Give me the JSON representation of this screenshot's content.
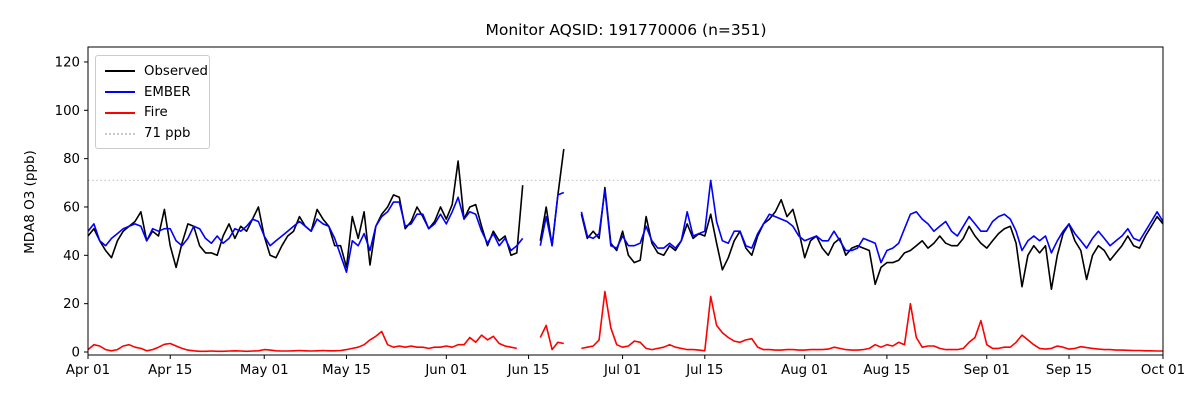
{
  "title": "Monitor AQSID: 191770006 (n=351)",
  "y_axis": {
    "label": "MDA8 O3 (ppb)",
    "ticks": [
      0,
      20,
      40,
      60,
      80,
      100,
      120
    ]
  },
  "x_axis": {
    "tick_labels": [
      "Apr 01",
      "Apr 15",
      "May 01",
      "May 15",
      "Jun 01",
      "Jun 15",
      "Jul 01",
      "Jul 15",
      "Aug 01",
      "Aug 15",
      "Sep 01",
      "Sep 15",
      "Oct 01"
    ],
    "tick_day_indices": [
      0,
      14,
      30,
      44,
      61,
      75,
      91,
      105,
      122,
      136,
      153,
      167,
      183
    ]
  },
  "legend": {
    "items": [
      {
        "label": "Observed",
        "color": "#000000",
        "style": "solid"
      },
      {
        "label": "EMBER",
        "color": "#0000ff",
        "style": "solid"
      },
      {
        "label": "Fire",
        "color": "#ff0000",
        "style": "solid"
      },
      {
        "label": "71 ppb",
        "color": "#c9c9c9",
        "style": "dotted"
      }
    ]
  },
  "threshold": {
    "value": 71,
    "label": "71 ppb",
    "color": "#c9c9c9"
  },
  "chart_data": {
    "type": "line",
    "title": "Monitor AQSID: 191770006 (n=351)",
    "xlabel": "",
    "ylabel": "MDA8 O3 (ppb)",
    "ylim": [
      -1,
      126
    ],
    "x_start_label": "Apr 01",
    "x_end_label": "Oct 01",
    "x_unit": "day index from Apr 01 (daily values, 184 days)",
    "grid": false,
    "legend_position": "upper left",
    "reference_line_ppb": 71,
    "series": [
      {
        "name": "Observed",
        "color": "#000000",
        "values": [
          48,
          51,
          46,
          42,
          39,
          46,
          50,
          52,
          54,
          58,
          46,
          50,
          48,
          59,
          44,
          35,
          45,
          53,
          52,
          44,
          41,
          41,
          40,
          48,
          53,
          47,
          52,
          50,
          55,
          60,
          48,
          40,
          39,
          44,
          48,
          50,
          56,
          52,
          50,
          59,
          55,
          52,
          44,
          44,
          35,
          56,
          47,
          58,
          36,
          52,
          57,
          60,
          65,
          64,
          51,
          54,
          60,
          56,
          51,
          54,
          60,
          55,
          61,
          79,
          55,
          60,
          61,
          52,
          44,
          50,
          46,
          48,
          40,
          41,
          69,
          null,
          null,
          46,
          60,
          44,
          65,
          84,
          null,
          null,
          57,
          47,
          50,
          47,
          68,
          45,
          42,
          50,
          40,
          37,
          38,
          56,
          45,
          41,
          40,
          44,
          42,
          46,
          53,
          47,
          49,
          48,
          57,
          45,
          34,
          39,
          46,
          50,
          43,
          40,
          48,
          53,
          55,
          58,
          63,
          56,
          59,
          50,
          39,
          46,
          48,
          43,
          40,
          45,
          47,
          40,
          43,
          44,
          43,
          42,
          28,
          35,
          37,
          37,
          38,
          41,
          42,
          44,
          46,
          43,
          45,
          48,
          45,
          44,
          44,
          47,
          52,
          48,
          45,
          43,
          46,
          49,
          51,
          52,
          45,
          27,
          40,
          44,
          41,
          44,
          26,
          40,
          49,
          53,
          46,
          42,
          30,
          40,
          44,
          42,
          38,
          41,
          44,
          48,
          44,
          43,
          48,
          52,
          56,
          53
        ]
      },
      {
        "name": "EMBER",
        "color": "#0000ff",
        "values": [
          50,
          53,
          46,
          44,
          47,
          49,
          51,
          52,
          53,
          52,
          46,
          51,
          50,
          51,
          51,
          46,
          44,
          47,
          52,
          51,
          47,
          45,
          48,
          45,
          47,
          51,
          50,
          52,
          55,
          54,
          48,
          44,
          46,
          48,
          50,
          52,
          54,
          52,
          50,
          55,
          53,
          52,
          47,
          40,
          33,
          46,
          44,
          49,
          42,
          52,
          56,
          58,
          62,
          62,
          52,
          53,
          57,
          57,
          51,
          53,
          57,
          53,
          58,
          64,
          55,
          58,
          57,
          50,
          45,
          49,
          44,
          47,
          42,
          44,
          47,
          null,
          null,
          44,
          56,
          44,
          65,
          66,
          null,
          null,
          58,
          48,
          47,
          49,
          67,
          44,
          43,
          48,
          44,
          44,
          45,
          52,
          46,
          43,
          43,
          45,
          43,
          46,
          58,
          48,
          49,
          50,
          71,
          54,
          46,
          45,
          50,
          50,
          44,
          43,
          49,
          53,
          57,
          56,
          55,
          54,
          52,
          48,
          46,
          47,
          48,
          46,
          46,
          50,
          46,
          42,
          42,
          43,
          47,
          46,
          45,
          37,
          42,
          43,
          45,
          51,
          57,
          58,
          55,
          53,
          50,
          52,
          54,
          50,
          48,
          52,
          56,
          53,
          50,
          50,
          54,
          56,
          57,
          55,
          50,
          42,
          46,
          48,
          46,
          48,
          41,
          46,
          50,
          53,
          49,
          46,
          43,
          47,
          50,
          47,
          44,
          46,
          48,
          51,
          47,
          46,
          50,
          54,
          58,
          54
        ]
      },
      {
        "name": "Fire",
        "color": "#ff0000",
        "values": [
          1,
          3,
          2.5,
          1,
          0.5,
          1,
          2.5,
          3,
          2,
          1.5,
          0.5,
          1,
          2,
          3.2,
          3.5,
          2.5,
          1.5,
          0.8,
          0.5,
          0.3,
          0.3,
          0.4,
          0.3,
          0.3,
          0.4,
          0.5,
          0.4,
          0.3,
          0.4,
          0.5,
          1,
          0.8,
          0.5,
          0.4,
          0.4,
          0.5,
          0.6,
          0.5,
          0.4,
          0.5,
          0.6,
          0.5,
          0.5,
          0.6,
          1,
          1.5,
          2,
          3,
          5,
          6.5,
          8.5,
          3,
          2,
          2.5,
          2,
          2.5,
          2,
          2,
          1.5,
          2,
          2,
          2.5,
          2,
          3,
          3,
          6,
          4,
          7,
          5,
          6.5,
          3.5,
          2.5,
          2,
          1.5,
          null,
          null,
          null,
          6,
          11,
          1,
          4,
          3.5,
          null,
          null,
          1.5,
          2,
          2.5,
          5,
          25,
          10,
          3,
          2,
          2.5,
          4.5,
          4,
          1.5,
          1,
          1.5,
          2,
          3,
          2,
          1.5,
          1,
          1,
          0.8,
          0.5,
          23,
          11,
          8,
          6,
          4.5,
          4,
          5,
          5.5,
          2,
          1,
          1,
          0.8,
          0.8,
          1,
          1,
          0.8,
          0.8,
          1,
          1,
          1,
          1.2,
          2,
          1.5,
          1,
          0.8,
          0.8,
          1,
          1.5,
          3,
          2,
          3,
          2.5,
          4,
          3,
          20,
          6,
          2,
          2.5,
          2.5,
          1.5,
          1,
          1,
          1,
          1.5,
          4,
          6,
          13,
          3,
          1.5,
          1.5,
          2,
          2,
          4,
          7,
          5,
          3,
          1.5,
          1.2,
          1.5,
          2.5,
          2,
          1.2,
          1.5,
          2.2,
          1.8,
          1.5,
          1.2,
          1,
          1,
          0.8,
          0.8,
          0.7,
          0.6,
          0.6,
          0.5,
          0.5,
          0.4,
          0.4
        ]
      }
    ]
  }
}
